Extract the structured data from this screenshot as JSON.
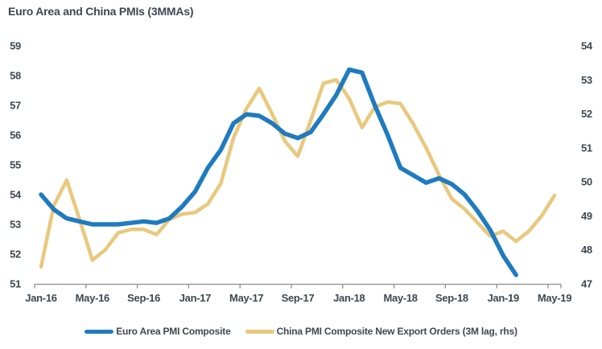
{
  "title": "Euro Area and China PMIs (3MMAs)",
  "colors": {
    "euro_line": "#1F7BBF",
    "china_line": "#E9C87D",
    "text": "#3F474F",
    "axis": "#8C8C8C"
  },
  "chart_data": {
    "type": "line",
    "title": "Euro Area and China PMIs (3MMAs)",
    "grid": false,
    "legend_position": "bottom",
    "x_tick_labels": [
      "Jan-16",
      "May-16",
      "Sep-16",
      "Jan-17",
      "May-17",
      "Sep-17",
      "Jan-18",
      "May-18",
      "Sep-18",
      "Jan-19",
      "May-19"
    ],
    "left_axis": {
      "min": 51,
      "max": 59,
      "ticks": [
        59,
        58,
        57,
        56,
        55,
        54,
        53,
        52,
        51
      ]
    },
    "right_axis": {
      "min": 47,
      "max": 54,
      "ticks": [
        54,
        53,
        52,
        51,
        50,
        49,
        48,
        47
      ]
    },
    "months": [
      "Jan-16",
      "Feb-16",
      "Mar-16",
      "Apr-16",
      "May-16",
      "Jun-16",
      "Jul-16",
      "Aug-16",
      "Sep-16",
      "Oct-16",
      "Nov-16",
      "Dec-16",
      "Jan-17",
      "Feb-17",
      "Mar-17",
      "Apr-17",
      "May-17",
      "Jun-17",
      "Jul-17",
      "Aug-17",
      "Sep-17",
      "Oct-17",
      "Nov-17",
      "Dec-17",
      "Jan-18",
      "Feb-18",
      "Mar-18",
      "Apr-18",
      "May-18",
      "Jun-18",
      "Jul-18",
      "Aug-18",
      "Sep-18",
      "Oct-18",
      "Nov-18",
      "Dec-18",
      "Jan-19",
      "Feb-19",
      "Mar-19",
      "Apr-19",
      "May-19"
    ],
    "series": [
      {
        "key": "euro-area-pmi-composite",
        "name": "Euro Area PMI Composite",
        "axis": "left",
        "color": "#1F7BBF",
        "values": [
          54.0,
          53.5,
          53.2,
          53.1,
          53.0,
          53.0,
          53.0,
          53.05,
          53.1,
          53.05,
          53.2,
          53.6,
          54.1,
          54.9,
          55.5,
          56.4,
          56.7,
          56.65,
          56.4,
          56.05,
          55.9,
          56.1,
          56.7,
          57.35,
          58.2,
          58.1,
          57.0,
          56.0,
          54.9,
          54.65,
          54.4,
          54.55,
          54.35,
          54.0,
          53.45,
          52.8,
          51.95,
          51.3
        ]
      },
      {
        "key": "china-pmi-new-export-orders",
        "name": "China PMI Composite New Export Orders (3M lag, rhs)",
        "axis": "right",
        "color": "#E9C87D",
        "values": [
          47.5,
          49.3,
          50.05,
          48.9,
          47.7,
          48.0,
          48.5,
          48.6,
          48.6,
          48.45,
          48.9,
          49.05,
          49.1,
          49.35,
          49.95,
          51.3,
          52.15,
          52.75,
          52.0,
          51.2,
          50.75,
          51.8,
          52.9,
          53.0,
          52.45,
          51.6,
          52.2,
          52.35,
          52.3,
          51.7,
          51.0,
          50.2,
          49.5,
          49.2,
          48.8,
          48.4,
          48.55,
          48.25,
          48.55,
          49.0,
          49.6
        ]
      }
    ]
  }
}
